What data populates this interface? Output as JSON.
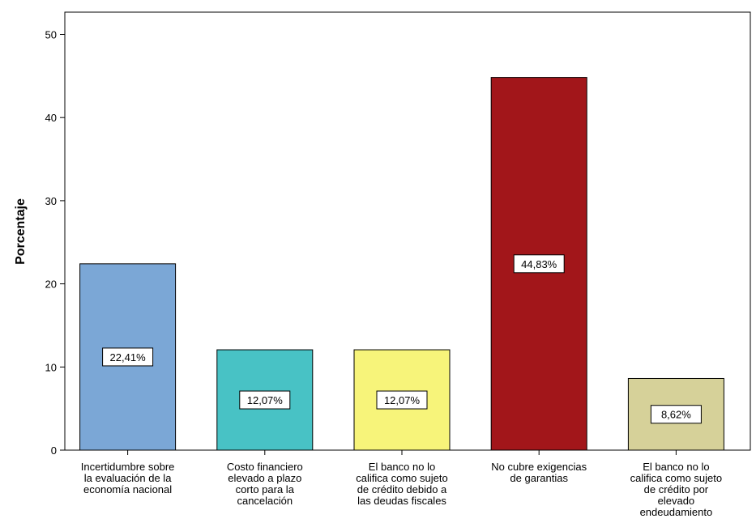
{
  "chart_data": {
    "type": "bar",
    "categories": [
      [
        "Incertidumbre sobre",
        "la evaluación de la",
        "economía nacional"
      ],
      [
        "Costo financiero",
        "elevado a plazo",
        "corto para la",
        "cancelación"
      ],
      [
        "El banco no lo",
        "califica como sujeto",
        "de crédito debido a",
        "las deudas fiscales"
      ],
      [
        "No cubre exigencias",
        "de garantias"
      ],
      [
        "El banco no lo",
        "califica como sujeto",
        "de crédito por",
        "elevado",
        "endeudamiento"
      ]
    ],
    "values": [
      22.41,
      12.07,
      12.07,
      44.83,
      8.62
    ],
    "data_labels": [
      "22,41%",
      "12,07%",
      "12,07%",
      "44,83%",
      "8,62%"
    ],
    "colors": [
      "#7ba7d6",
      "#48c2c5",
      "#f7f47a",
      "#a2161a",
      "#d6d199"
    ],
    "ylabel": "Porcentaje",
    "ylim": [
      0,
      52
    ],
    "yticks": [
      0,
      10,
      20,
      30,
      40,
      50
    ],
    "grid": false,
    "legend": false
  }
}
